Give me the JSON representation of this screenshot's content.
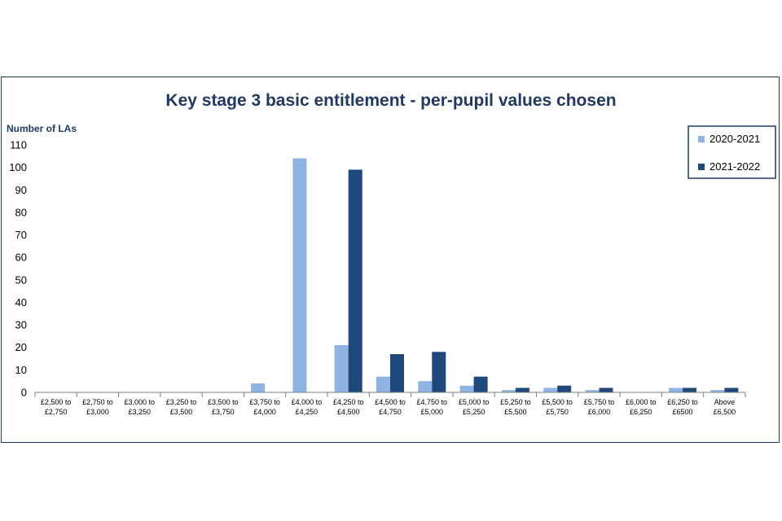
{
  "chart_data": {
    "type": "bar",
    "title": "Key stage 3 basic entitlement - per-pupil values chosen",
    "ylabel": "Number of LAs",
    "xlabel": "",
    "ylim": [
      0,
      110
    ],
    "yticks": [
      0,
      10,
      20,
      30,
      40,
      50,
      60,
      70,
      80,
      90,
      100,
      110
    ],
    "grid": false,
    "legend_position": "top-right",
    "categories": [
      [
        "£2,500 to",
        "£2,750"
      ],
      [
        "£2,750 to",
        "£3,000"
      ],
      [
        "£3,000 to",
        "£3,250"
      ],
      [
        "£3,250 to",
        "£3,500"
      ],
      [
        "£3,500 to",
        "£3,750"
      ],
      [
        "£3,750 to",
        "£4,000"
      ],
      [
        "£4,000 to",
        "£4,250"
      ],
      [
        "£4,250 to",
        "£4,500"
      ],
      [
        "£4,500 to",
        "£4,750"
      ],
      [
        "£4,750 to",
        "£5,000"
      ],
      [
        "£5,000 to",
        "£5,250"
      ],
      [
        "£5,250 to",
        "£5,500"
      ],
      [
        "£5,500 to",
        "£5,750"
      ],
      [
        "£5,750 to",
        "£6,000"
      ],
      [
        "£6,000 to",
        "£6,250"
      ],
      [
        "£6,250 to",
        "£6500"
      ],
      [
        "Above",
        "£6,500"
      ]
    ],
    "series": [
      {
        "name": "2020-2021",
        "color": "#8eb4e3",
        "values": [
          0,
          0,
          0,
          0,
          0,
          4,
          104,
          21,
          7,
          5,
          3,
          1,
          2,
          1,
          0,
          2,
          1
        ]
      },
      {
        "name": "2021-2022",
        "color": "#1f497d",
        "values": [
          0,
          0,
          0,
          0,
          0,
          0,
          0,
          99,
          17,
          18,
          7,
          2,
          3,
          2,
          0,
          2,
          2
        ]
      }
    ]
  }
}
